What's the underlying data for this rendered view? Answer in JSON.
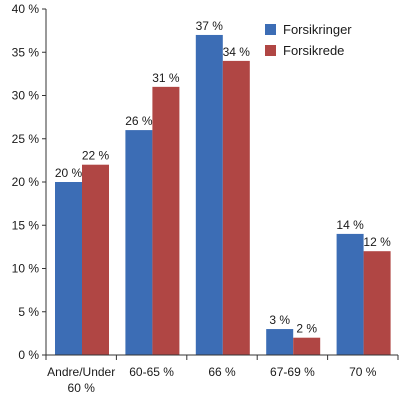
{
  "chart_data": {
    "type": "bar",
    "title": "",
    "xlabel": "",
    "ylabel": "",
    "categories": [
      [
        "Andre/Under",
        "60 %"
      ],
      [
        "60-65 %"
      ],
      [
        "66 %"
      ],
      [
        "67-69 %"
      ],
      [
        "70 %"
      ]
    ],
    "series": [
      {
        "name": "Forsikringer",
        "color": "#3c6db5",
        "values": [
          20,
          26,
          37,
          3,
          14
        ],
        "labels": [
          "20 %",
          "26 %",
          "37 %",
          "3 %",
          "14 %"
        ]
      },
      {
        "name": "Forsikrede",
        "color": "#b04644",
        "values": [
          22,
          31,
          34,
          2,
          12
        ],
        "labels": [
          "22 %",
          "31 %",
          "34 %",
          "2 %",
          "12 %"
        ]
      }
    ],
    "ylim": [
      0,
      40
    ],
    "yticks": [
      0,
      5,
      10,
      15,
      20,
      25,
      30,
      35,
      40
    ],
    "ytick_labels": [
      "0 %",
      "5 %",
      "10 %",
      "15 %",
      "20 %",
      "25 %",
      "30 %",
      "35 %",
      "40 %"
    ],
    "grid": false,
    "legend": "top-right"
  }
}
